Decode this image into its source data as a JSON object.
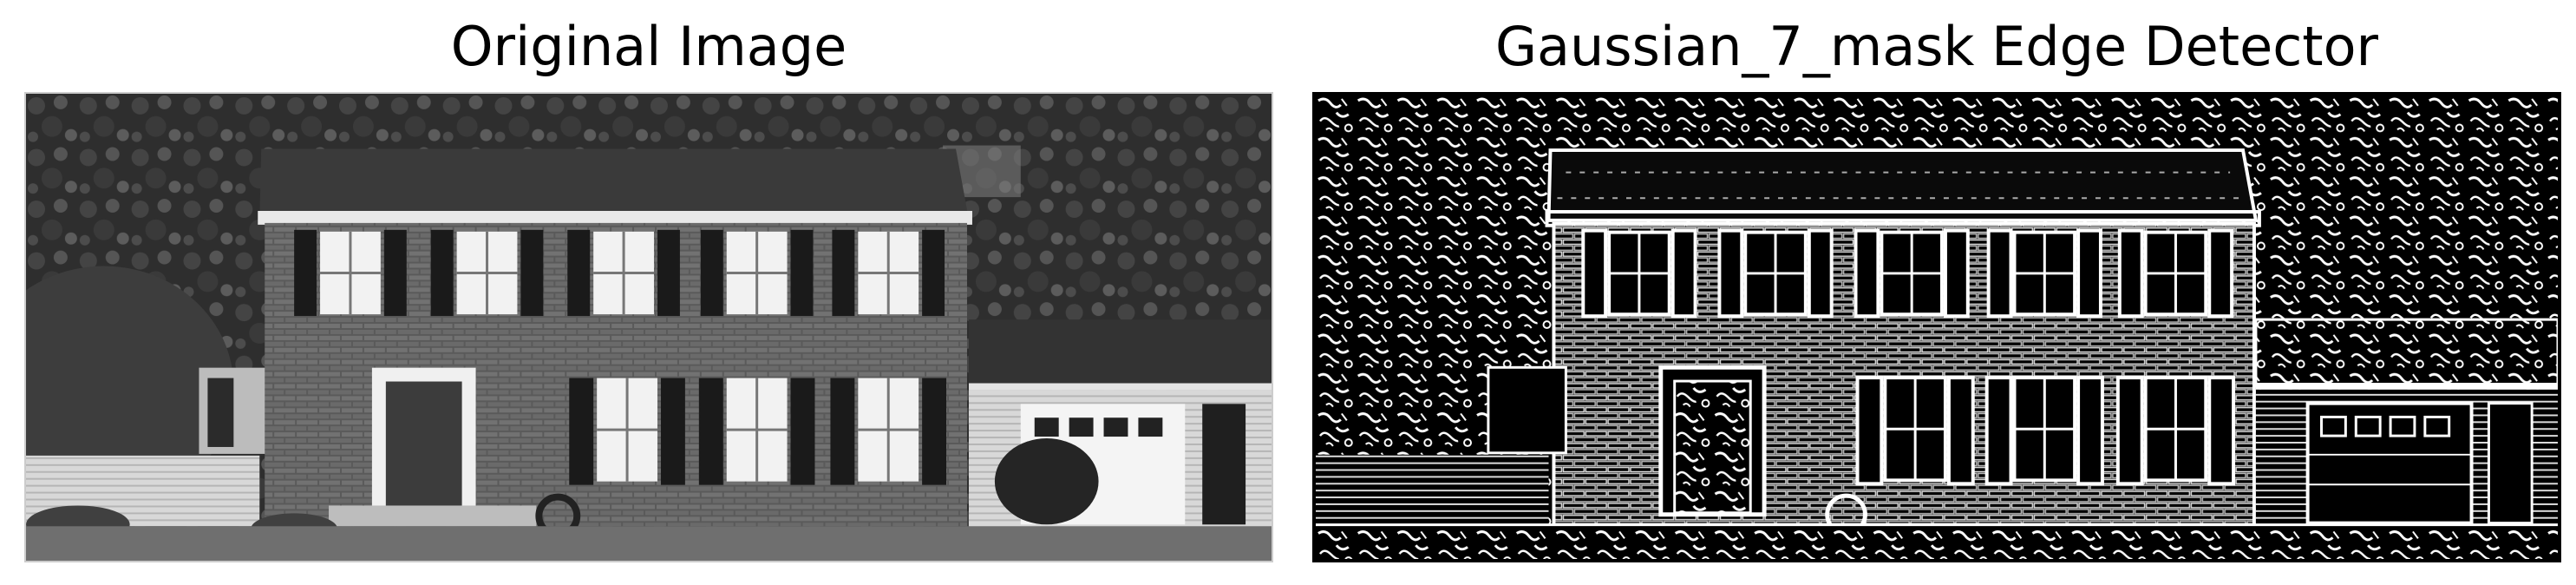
{
  "panels": [
    {
      "title": "Original Image",
      "image": "grayscale photograph of a two-story brick colonial house with black shutters, white windows, front door, attached garage and trees"
    },
    {
      "title": "Gaussian_7_mask Edge Detector",
      "image": "edge-detection output of the same house: white edges on black background, noisy foliage texture"
    }
  ]
}
